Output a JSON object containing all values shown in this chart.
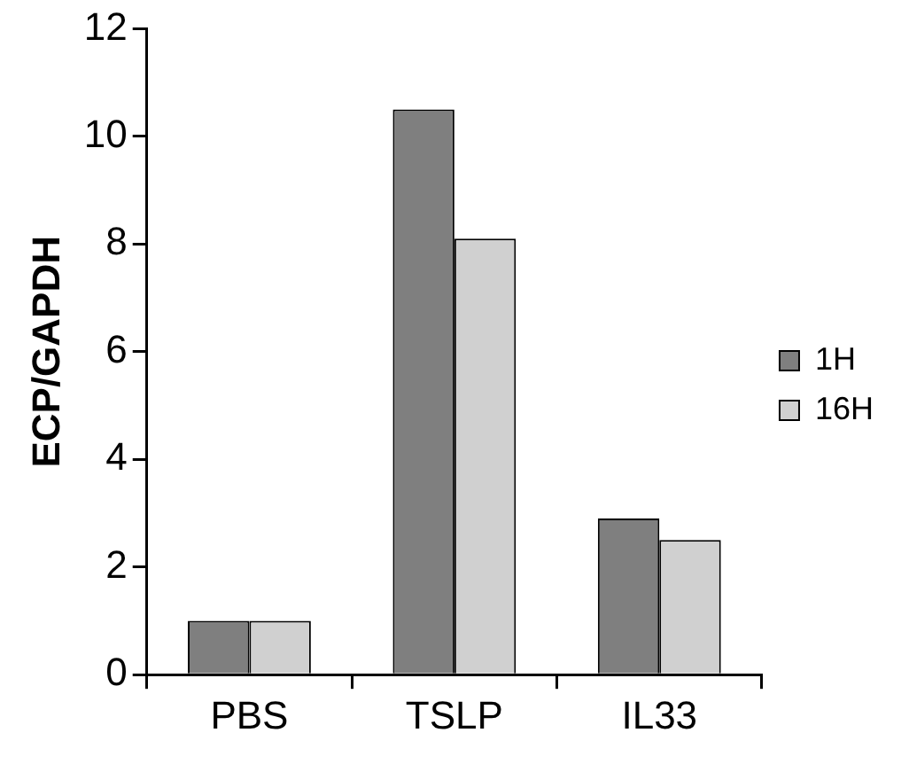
{
  "chart_data": {
    "type": "bar",
    "ylabel": "ECP/GAPDH",
    "categories": [
      "PBS",
      "TSLP",
      "IL33"
    ],
    "series": [
      {
        "name": "1H",
        "color": "#7f7f7f",
        "values": [
          1.0,
          10.5,
          2.9
        ]
      },
      {
        "name": "16H",
        "color": "#d0d0d0",
        "values": [
          1.0,
          8.1,
          2.5
        ]
      }
    ],
    "ylim": [
      0,
      12
    ],
    "yticks": [
      0,
      2,
      4,
      6,
      8,
      10,
      12
    ],
    "grid": false,
    "legend": "right"
  }
}
